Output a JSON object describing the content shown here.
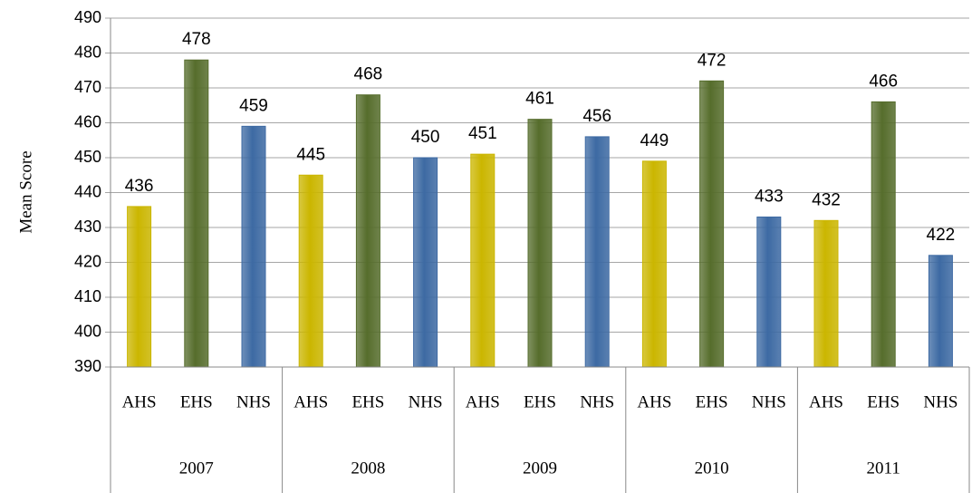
{
  "chart_data": {
    "type": "bar",
    "ylabel": "Mean Score",
    "categories": [
      "2007",
      "2008",
      "2009",
      "2010",
      "2011"
    ],
    "series": [
      {
        "name": "AHS",
        "color": "#cbb600",
        "values": [
          436,
          445,
          451,
          449,
          432
        ]
      },
      {
        "name": "EHS",
        "color": "#566d2c",
        "values": [
          478,
          468,
          461,
          472,
          466
        ]
      },
      {
        "name": "NHS",
        "color": "#3d6aa3",
        "values": [
          459,
          450,
          456,
          433,
          422
        ]
      }
    ],
    "ylim": [
      390,
      490
    ],
    "yticks": [
      390,
      400,
      410,
      420,
      430,
      440,
      450,
      460,
      470,
      480,
      490
    ],
    "grid": true
  }
}
